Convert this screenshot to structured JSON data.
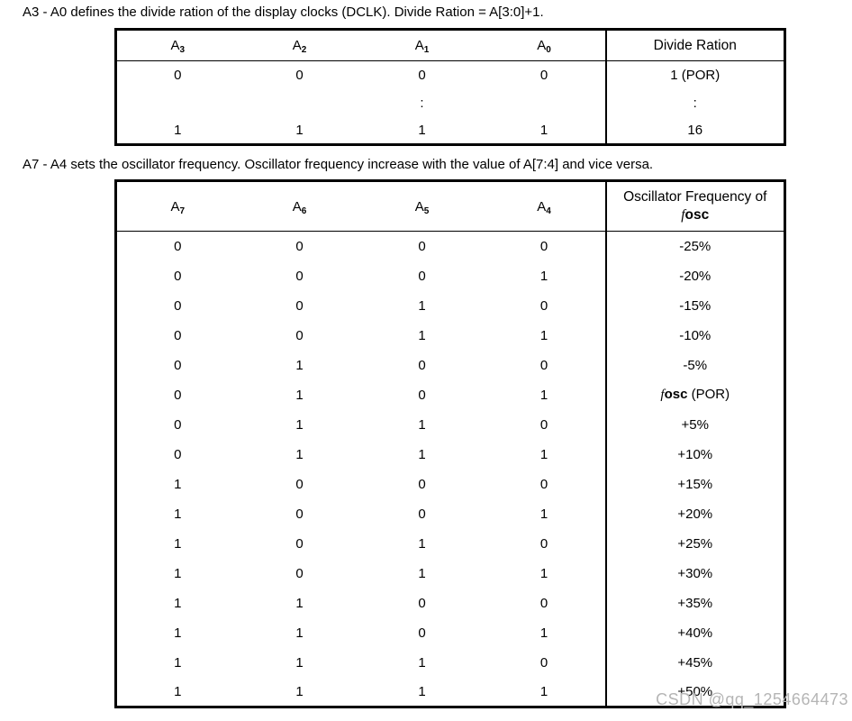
{
  "intro1": "A3 - A0 defines the divide ration of the display clocks (DCLK). Divide Ration = A[3:0]+1.",
  "intro2": "A7 - A4 sets the oscillator frequency. Oscillator frequency increase with the value of A[7:4] and vice versa.",
  "watermark": "CSDN @qq_1254664473",
  "colors": {
    "text": "#000000",
    "border": "#000000",
    "watermark": "#b5b5b5",
    "background": "#ffffff"
  },
  "table1": {
    "col_headers": [
      {
        "base": "A",
        "sub": "3"
      },
      {
        "base": "A",
        "sub": "2"
      },
      {
        "base": "A",
        "sub": "1"
      },
      {
        "base": "A",
        "sub": "0"
      }
    ],
    "value_header_lines": [
      [
        {
          "t": "Divide Ration"
        }
      ]
    ],
    "rows": [
      {
        "bits": [
          "0",
          "0",
          "0",
          "0"
        ],
        "value": [
          {
            "t": "1 (POR)"
          }
        ]
      },
      {
        "bits": [
          "",
          "",
          ":",
          ""
        ],
        "value": [
          {
            "t": ":"
          }
        ]
      },
      {
        "bits": [
          "1",
          "1",
          "1",
          "1"
        ],
        "value": [
          {
            "t": "16"
          }
        ]
      }
    ]
  },
  "table2": {
    "col_headers": [
      {
        "base": "A",
        "sub": "7"
      },
      {
        "base": "A",
        "sub": "6"
      },
      {
        "base": "A",
        "sub": "5"
      },
      {
        "base": "A",
        "sub": "4"
      }
    ],
    "value_header_lines": [
      [
        {
          "t": "Oscillator Frequency of"
        }
      ],
      [
        {
          "t": "f",
          "style": "fi"
        },
        {
          "t": "osc",
          "style": "fb"
        }
      ]
    ],
    "rows": [
      {
        "bits": [
          "0",
          "0",
          "0",
          "0"
        ],
        "value": [
          {
            "t": "-25%"
          }
        ]
      },
      {
        "bits": [
          "0",
          "0",
          "0",
          "1"
        ],
        "value": [
          {
            "t": "-20%"
          }
        ]
      },
      {
        "bits": [
          "0",
          "0",
          "1",
          "0"
        ],
        "value": [
          {
            "t": "-15%"
          }
        ]
      },
      {
        "bits": [
          "0",
          "0",
          "1",
          "1"
        ],
        "value": [
          {
            "t": "-10%"
          }
        ]
      },
      {
        "bits": [
          "0",
          "1",
          "0",
          "0"
        ],
        "value": [
          {
            "t": "-5%"
          }
        ]
      },
      {
        "bits": [
          "0",
          "1",
          "0",
          "1"
        ],
        "value": [
          {
            "t": "f",
            "style": "fi"
          },
          {
            "t": "osc",
            "style": "fb"
          },
          {
            "t": " (POR)"
          }
        ]
      },
      {
        "bits": [
          "0",
          "1",
          "1",
          "0"
        ],
        "value": [
          {
            "t": "+5%"
          }
        ]
      },
      {
        "bits": [
          "0",
          "1",
          "1",
          "1"
        ],
        "value": [
          {
            "t": "+10%"
          }
        ]
      },
      {
        "bits": [
          "1",
          "0",
          "0",
          "0"
        ],
        "value": [
          {
            "t": "+15%"
          }
        ]
      },
      {
        "bits": [
          "1",
          "0",
          "0",
          "1"
        ],
        "value": [
          {
            "t": "+20%"
          }
        ]
      },
      {
        "bits": [
          "1",
          "0",
          "1",
          "0"
        ],
        "value": [
          {
            "t": "+25%"
          }
        ]
      },
      {
        "bits": [
          "1",
          "0",
          "1",
          "1"
        ],
        "value": [
          {
            "t": "+30%"
          }
        ]
      },
      {
        "bits": [
          "1",
          "1",
          "0",
          "0"
        ],
        "value": [
          {
            "t": "+35%"
          }
        ]
      },
      {
        "bits": [
          "1",
          "1",
          "0",
          "1"
        ],
        "value": [
          {
            "t": "+40%"
          }
        ]
      },
      {
        "bits": [
          "1",
          "1",
          "1",
          "0"
        ],
        "value": [
          {
            "t": "+45%"
          }
        ]
      },
      {
        "bits": [
          "1",
          "1",
          "1",
          "1"
        ],
        "value": [
          {
            "t": "+50%"
          }
        ]
      }
    ]
  }
}
